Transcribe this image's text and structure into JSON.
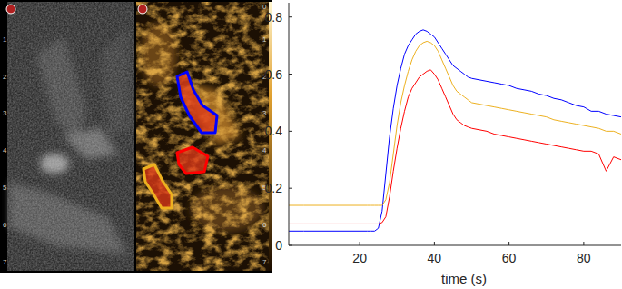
{
  "chart_data": {
    "type": "line",
    "xlabel": "time (s)",
    "x": [
      1,
      5,
      10,
      15,
      20,
      22,
      23,
      24,
      25,
      26,
      27,
      28,
      29,
      30,
      31,
      32,
      33,
      34,
      35,
      36,
      37,
      38,
      39,
      40,
      41,
      42,
      43,
      44,
      45,
      46,
      47,
      48,
      49,
      50,
      52,
      54,
      56,
      58,
      60,
      62,
      64,
      66,
      68,
      70,
      72,
      74,
      76,
      78,
      80,
      82,
      84,
      86,
      88,
      90
    ],
    "series": [
      {
        "color": "#0000ff",
        "values": [
          0.05,
          0.05,
          0.05,
          0.05,
          0.05,
          0.05,
          0.05,
          0.05,
          0.06,
          0.12,
          0.25,
          0.38,
          0.48,
          0.56,
          0.62,
          0.67,
          0.7,
          0.72,
          0.74,
          0.75,
          0.755,
          0.75,
          0.74,
          0.73,
          0.71,
          0.69,
          0.67,
          0.65,
          0.63,
          0.62,
          0.61,
          0.6,
          0.59,
          0.585,
          0.58,
          0.575,
          0.57,
          0.565,
          0.56,
          0.55,
          0.545,
          0.54,
          0.53,
          0.525,
          0.515,
          0.51,
          0.5,
          0.49,
          0.485,
          0.47,
          0.47,
          0.46,
          0.455,
          0.45
        ]
      },
      {
        "color": "#edb120",
        "values": [
          0.14,
          0.14,
          0.14,
          0.14,
          0.14,
          0.14,
          0.14,
          0.14,
          0.14,
          0.14,
          0.16,
          0.22,
          0.32,
          0.42,
          0.5,
          0.56,
          0.61,
          0.65,
          0.68,
          0.7,
          0.71,
          0.715,
          0.71,
          0.7,
          0.68,
          0.65,
          0.62,
          0.59,
          0.56,
          0.54,
          0.53,
          0.52,
          0.51,
          0.5,
          0.495,
          0.49,
          0.485,
          0.48,
          0.475,
          0.47,
          0.465,
          0.46,
          0.455,
          0.45,
          0.44,
          0.435,
          0.43,
          0.425,
          0.42,
          0.415,
          0.41,
          0.4,
          0.4,
          0.39
        ]
      },
      {
        "color": "#ff0000",
        "values": [
          0.075,
          0.075,
          0.075,
          0.075,
          0.075,
          0.075,
          0.075,
          0.075,
          0.075,
          0.08,
          0.1,
          0.17,
          0.26,
          0.34,
          0.41,
          0.47,
          0.52,
          0.55,
          0.57,
          0.59,
          0.6,
          0.61,
          0.615,
          0.6,
          0.58,
          0.55,
          0.52,
          0.49,
          0.46,
          0.44,
          0.43,
          0.42,
          0.415,
          0.41,
          0.405,
          0.4,
          0.39,
          0.385,
          0.38,
          0.375,
          0.37,
          0.365,
          0.36,
          0.355,
          0.35,
          0.345,
          0.34,
          0.335,
          0.33,
          0.33,
          0.32,
          0.26,
          0.31,
          0.3
        ]
      }
    ],
    "xlim": [
      1,
      90
    ],
    "xticks": [
      20,
      40,
      60,
      80
    ],
    "ylim": [
      0,
      0.85
    ],
    "yticks": [
      0,
      0.2,
      0.4,
      0.6,
      0.8
    ],
    "grid": false
  },
  "image_panel": {
    "depth_ticks": [
      1,
      2,
      3,
      4,
      5,
      6,
      7
    ],
    "colorbar_max": 0
  }
}
